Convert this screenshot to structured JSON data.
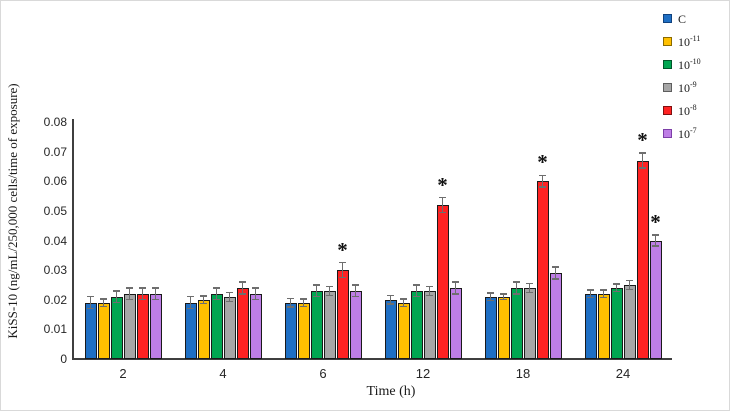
{
  "figure": {
    "background": "#ffffff",
    "border_color": "#d9d9d9",
    "axis_color": "#3f3f3f",
    "error_bar_color": "#6e6e6e"
  },
  "chart_data": {
    "type": "bar",
    "title": "",
    "xlabel": "Time (h)",
    "ylabel": "KiSS-10 (ng/mL/250,000 cells/time of exposure)",
    "categories": [
      "2",
      "4",
      "6",
      "12",
      "18",
      "24"
    ],
    "y_axis": {
      "min": 0,
      "max": 0.08,
      "step": 0.01,
      "tick_labels": [
        "0",
        "0.01",
        "0.02",
        "0.03",
        "0.04",
        "0.05",
        "0.06",
        "0.07",
        "0.08"
      ]
    },
    "grid": false,
    "legend_position": "top-right",
    "significance_marker": "*",
    "series": [
      {
        "name": "C",
        "exponent": null,
        "color": "#1F6FC4",
        "border": "#10427E",
        "values": [
          0.019,
          0.019,
          0.019,
          0.02,
          0.021,
          0.022
        ],
        "errors": [
          0.002,
          0.002,
          0.0015,
          0.0015,
          0.0013,
          0.0013
        ],
        "sig": [
          false,
          false,
          false,
          false,
          false,
          false
        ]
      },
      {
        "name": "10",
        "exponent": "-11",
        "color": "#FFC000",
        "border": "#8A6A00",
        "values": [
          0.019,
          0.02,
          0.019,
          0.019,
          0.021,
          0.022
        ],
        "errors": [
          0.0013,
          0.0013,
          0.0013,
          0.0013,
          0.001,
          0.0013
        ],
        "sig": [
          false,
          false,
          false,
          false,
          false,
          false
        ]
      },
      {
        "name": "10",
        "exponent": "-10",
        "color": "#00A651",
        "border": "#00562A",
        "values": [
          0.021,
          0.022,
          0.023,
          0.023,
          0.024,
          0.024
        ],
        "errors": [
          0.002,
          0.002,
          0.002,
          0.002,
          0.002,
          0.0013
        ],
        "sig": [
          false,
          false,
          false,
          false,
          false,
          false
        ]
      },
      {
        "name": "10",
        "exponent": "-9",
        "color": "#A6A6A6",
        "border": "#5E5E5E",
        "values": [
          0.022,
          0.021,
          0.023,
          0.023,
          0.024,
          0.025
        ],
        "errors": [
          0.002,
          0.0015,
          0.0015,
          0.0015,
          0.0015,
          0.0015
        ],
        "sig": [
          false,
          false,
          false,
          false,
          false,
          false
        ]
      },
      {
        "name": "10",
        "exponent": "-8",
        "color": "#FF2222",
        "border": "#7F1010",
        "values": [
          0.022,
          0.024,
          0.03,
          0.052,
          0.06,
          0.067
        ],
        "errors": [
          0.002,
          0.002,
          0.0025,
          0.0025,
          0.002,
          0.0025
        ],
        "sig": [
          false,
          false,
          true,
          true,
          true,
          true
        ]
      },
      {
        "name": "10",
        "exponent": "-7",
        "color": "#BE7EE6",
        "border": "#7D3FA8",
        "values": [
          0.022,
          0.022,
          0.023,
          0.024,
          0.029,
          0.04
        ],
        "errors": [
          0.002,
          0.002,
          0.002,
          0.002,
          0.002,
          0.0018
        ],
        "sig": [
          false,
          false,
          false,
          false,
          false,
          true
        ]
      }
    ]
  }
}
